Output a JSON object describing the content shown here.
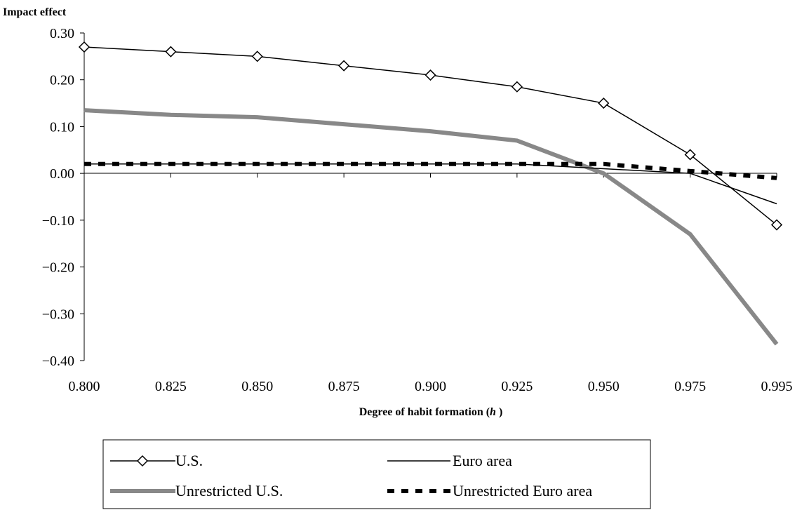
{
  "chart_data": {
    "type": "line",
    "ylabel": "Impact effect",
    "xlabel": "Degree of habit formation (h )",
    "xlabel_main": "Degree of habit formation (",
    "xlabel_var": "h",
    "xlabel_end": " )",
    "categories": [
      "0.800",
      "0.825",
      "0.850",
      "0.875",
      "0.900",
      "0.925",
      "0.950",
      "0.975",
      "0.995"
    ],
    "y_ticks": [
      "0.30",
      "0.20",
      "0.10",
      "0.00",
      "−0.10",
      "−0.20",
      "−0.30",
      "−0.40"
    ],
    "ylim": [
      -0.4,
      0.3
    ],
    "grid": false,
    "legend_position": "bottom",
    "series": [
      {
        "name": "U.S.",
        "style": "thin-diamond",
        "color": "#000000",
        "values": [
          0.27,
          0.26,
          0.25,
          0.23,
          0.21,
          0.185,
          0.15,
          0.04,
          -0.11
        ]
      },
      {
        "name": "Euro area",
        "style": "thin",
        "color": "#000000",
        "values": [
          0.02,
          0.02,
          0.02,
          0.02,
          0.02,
          0.02,
          0.01,
          0.0,
          -0.065
        ]
      },
      {
        "name": "Unrestricted U.S.",
        "style": "thick-gray",
        "color": "#888888",
        "values": [
          0.135,
          0.125,
          0.12,
          0.105,
          0.09,
          0.07,
          0.0,
          -0.13,
          -0.365
        ]
      },
      {
        "name": "Unrestricted Euro area",
        "style": "thick-dashed",
        "color": "#000000",
        "values": [
          0.02,
          0.02,
          0.02,
          0.02,
          0.02,
          0.02,
          0.02,
          0.005,
          -0.01
        ]
      }
    ]
  }
}
